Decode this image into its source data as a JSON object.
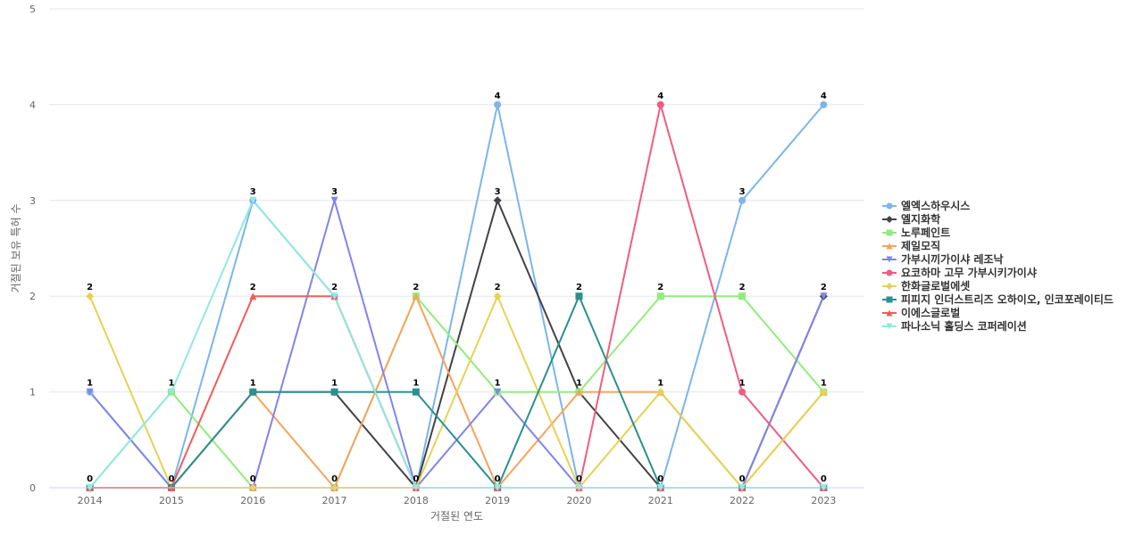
{
  "chart_data": {
    "type": "line",
    "xlabel": "거절된 연도",
    "ylabel": "거절된 보유 특허 수",
    "ylim": [
      0,
      5
    ],
    "yticks": [
      0,
      1,
      2,
      3,
      4,
      5
    ],
    "x": [
      "2014",
      "2015",
      "2016",
      "2017",
      "2018",
      "2019",
      "2020",
      "2021",
      "2022",
      "2023"
    ],
    "grid": "horizontal",
    "legend_position": "right",
    "series": [
      {
        "name": "엘엑스하우시스",
        "color": "#7cb5ec",
        "marker": "circle",
        "values": [
          1,
          0,
          3,
          2,
          0,
          4,
          0,
          0,
          3,
          4
        ]
      },
      {
        "name": "엘지화학",
        "color": "#434348",
        "marker": "diamond",
        "values": [
          0,
          0,
          1,
          1,
          0,
          3,
          1,
          0,
          0,
          2
        ]
      },
      {
        "name": "노루페인트",
        "color": "#90ed7d",
        "marker": "square",
        "values": [
          0,
          1,
          0,
          0,
          2,
          1,
          1,
          2,
          2,
          1
        ]
      },
      {
        "name": "제일모직",
        "color": "#f7a35c",
        "marker": "triangle",
        "values": [
          0,
          0,
          1,
          0,
          2,
          0,
          1,
          1,
          0,
          1
        ]
      },
      {
        "name": "가부시끼가이샤 레조낙",
        "color": "#8085e9",
        "marker": "triangle-down",
        "values": [
          1,
          0,
          0,
          3,
          0,
          1,
          0,
          0,
          0,
          2
        ]
      },
      {
        "name": "요코하마 고무 가부시키가이샤",
        "color": "#f15c80",
        "marker": "circle",
        "values": [
          0,
          0,
          0,
          0,
          0,
          0,
          0,
          4,
          1,
          0
        ]
      },
      {
        "name": "한화글로벌에셋",
        "color": "#e4d354",
        "marker": "diamond",
        "values": [
          2,
          0,
          0,
          0,
          0,
          2,
          0,
          1,
          0,
          1
        ]
      },
      {
        "name": "피피지 인더스트리즈 오하이오, 인코포레이티드",
        "color": "#2b908f",
        "marker": "square",
        "values": [
          0,
          0,
          1,
          1,
          1,
          0,
          2,
          0,
          0,
          0
        ]
      },
      {
        "name": "이에스글로벌",
        "color": "#f45b5b",
        "marker": "triangle",
        "values": [
          0,
          0,
          2,
          2,
          0,
          0,
          0,
          0,
          0,
          0
        ]
      },
      {
        "name": "파나소닉 홀딩스 코퍼레이션",
        "color": "#91e8e1",
        "marker": "triangle-down",
        "values": [
          0,
          1,
          3,
          2,
          0,
          0,
          0,
          0,
          0,
          0
        ]
      }
    ],
    "data_labels": [
      {
        "x": "2014",
        "value": 2
      },
      {
        "x": "2014",
        "value": 1
      },
      {
        "x": "2014",
        "value": 0
      },
      {
        "x": "2015",
        "value": 1
      },
      {
        "x": "2015",
        "value": 0
      },
      {
        "x": "2016",
        "value": 3
      },
      {
        "x": "2016",
        "value": 2
      },
      {
        "x": "2016",
        "value": 1
      },
      {
        "x": "2016",
        "value": 0
      },
      {
        "x": "2017",
        "value": 3
      },
      {
        "x": "2017",
        "value": 2
      },
      {
        "x": "2017",
        "value": 1
      },
      {
        "x": "2017",
        "value": 0
      },
      {
        "x": "2018",
        "value": 2
      },
      {
        "x": "2018",
        "value": 1
      },
      {
        "x": "2018",
        "value": 0
      },
      {
        "x": "2019",
        "value": 4
      },
      {
        "x": "2019",
        "value": 3
      },
      {
        "x": "2019",
        "value": 2
      },
      {
        "x": "2019",
        "value": 1
      },
      {
        "x": "2019",
        "value": 0
      },
      {
        "x": "2020",
        "value": 2
      },
      {
        "x": "2020",
        "value": 1
      },
      {
        "x": "2020",
        "value": 0
      },
      {
        "x": "2021",
        "value": 4
      },
      {
        "x": "2021",
        "value": 2
      },
      {
        "x": "2021",
        "value": 1
      },
      {
        "x": "2021",
        "value": 0
      },
      {
        "x": "2022",
        "value": 3
      },
      {
        "x": "2022",
        "value": 2
      },
      {
        "x": "2022",
        "value": 1
      },
      {
        "x": "2022",
        "value": 0
      },
      {
        "x": "2023",
        "value": 4
      },
      {
        "x": "2023",
        "value": 2
      },
      {
        "x": "2023",
        "value": 1
      },
      {
        "x": "2023",
        "value": 0
      }
    ]
  }
}
